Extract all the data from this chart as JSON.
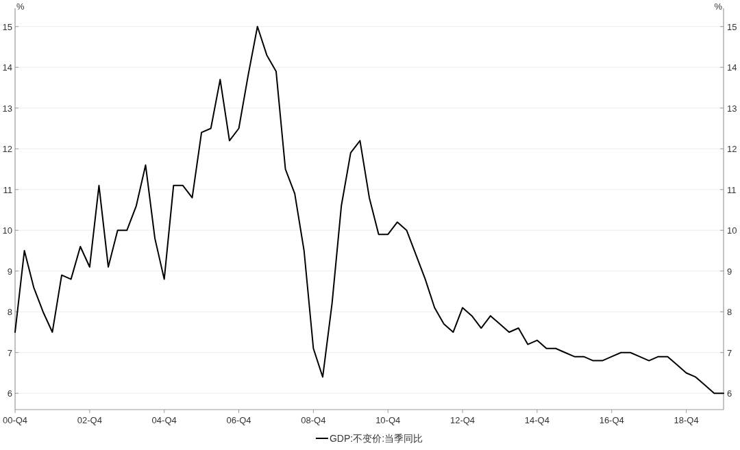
{
  "chart_data": {
    "type": "line",
    "categories": [
      "00-Q4",
      null,
      null,
      null,
      null,
      null,
      null,
      null,
      "02-Q4",
      null,
      null,
      null,
      null,
      null,
      null,
      null,
      "04-Q4",
      null,
      null,
      null,
      null,
      null,
      null,
      null,
      "06-Q4",
      null,
      null,
      null,
      null,
      null,
      null,
      null,
      "08-Q4",
      null,
      null,
      null,
      null,
      null,
      null,
      null,
      "10-Q4",
      null,
      null,
      null,
      null,
      null,
      null,
      null,
      "12-Q4",
      null,
      null,
      null,
      null,
      null,
      null,
      null,
      "14-Q4",
      null,
      null,
      null,
      null,
      null,
      null,
      null,
      "16-Q4",
      null,
      null,
      null,
      null,
      null,
      null,
      null,
      "18-Q4",
      null,
      null,
      null,
      null
    ],
    "series": [
      {
        "name": "GDP:不变价:当季同比",
        "color": "#000000",
        "values": [
          7.5,
          9.5,
          8.6,
          8.0,
          7.5,
          8.9,
          8.8,
          9.6,
          9.1,
          11.1,
          9.1,
          10.0,
          10.0,
          10.6,
          11.6,
          9.8,
          8.8,
          11.1,
          11.1,
          10.8,
          12.4,
          12.5,
          13.7,
          12.2,
          12.5,
          13.8,
          15.0,
          14.3,
          13.9,
          11.5,
          10.9,
          9.5,
          7.1,
          6.4,
          8.2,
          10.6,
          11.9,
          12.2,
          10.8,
          9.9,
          9.9,
          10.2,
          10.0,
          9.4,
          8.8,
          8.1,
          7.7,
          7.5,
          8.1,
          7.9,
          7.6,
          7.9,
          7.7,
          7.5,
          7.6,
          7.2,
          7.3,
          7.1,
          7.1,
          7.0,
          6.9,
          6.9,
          6.8,
          6.8,
          6.9,
          7.0,
          7.0,
          6.9,
          6.8,
          6.9,
          6.9,
          6.7,
          6.5,
          6.4,
          6.2,
          6.0,
          6.0
        ]
      }
    ],
    "ylabel": "%",
    "y2label": "%",
    "ylim": [
      5.6,
      15.45
    ],
    "yticks": [
      6,
      7,
      8,
      9,
      10,
      11,
      12,
      13,
      14,
      15
    ],
    "y2lim": [
      5.6,
      15.45
    ],
    "y2ticks": [
      6,
      7,
      8,
      9,
      10,
      11,
      12,
      13,
      14,
      15
    ],
    "grid": "y",
    "legend": "bottom",
    "marker": "none",
    "line_style": "solid"
  }
}
